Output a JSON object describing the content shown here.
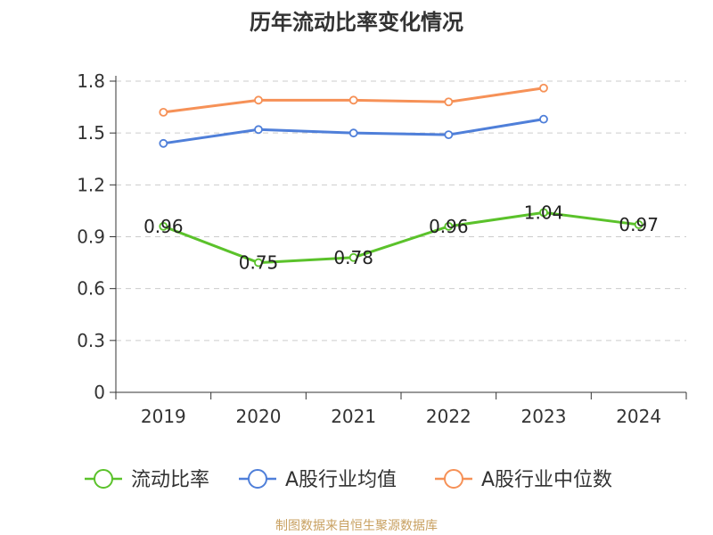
{
  "chart_data": {
    "type": "line",
    "title": "历年流动比率变化情况",
    "categories": [
      "2019",
      "2020",
      "2021",
      "2022",
      "2023",
      "2024"
    ],
    "y_ticks": [
      "0",
      "0.3",
      "0.6",
      "0.9",
      "1.2",
      "1.5",
      "1.8"
    ],
    "ylim": [
      0,
      1.8
    ],
    "grid": "horizontal dashed",
    "legend_position": "bottom",
    "series": [
      {
        "name": "流动比率",
        "color": "#5bc22b",
        "values": [
          0.96,
          0.75,
          0.78,
          0.96,
          1.04,
          0.97
        ],
        "data_labels": [
          "0.96",
          "0.75",
          "0.78",
          "0.96",
          "1.04",
          "0.97"
        ]
      },
      {
        "name": "A股行业均值",
        "color": "#4f7fd9",
        "values": [
          1.44,
          1.52,
          1.5,
          1.49,
          1.58,
          null
        ]
      },
      {
        "name": "A股行业中位数",
        "color": "#f69157",
        "values": [
          1.62,
          1.69,
          1.69,
          1.68,
          1.76,
          null
        ]
      }
    ]
  },
  "footer": {
    "source": "制图数据来自恒生聚源数据库"
  }
}
